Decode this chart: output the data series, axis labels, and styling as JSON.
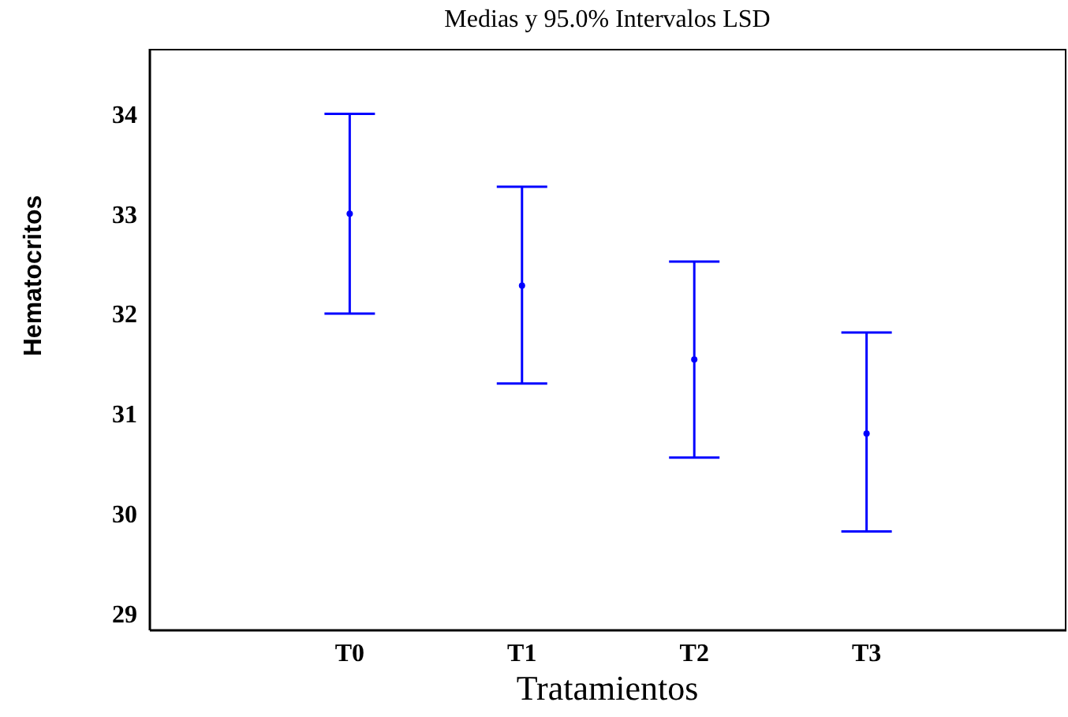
{
  "chart_data": {
    "type": "scatter",
    "title": "Medias y 95.0% Intervalos LSD",
    "xlabel": "Tratamientos",
    "ylabel": "Hematocritos",
    "categories": [
      "T0",
      "T1",
      "T2",
      "T3"
    ],
    "series": [
      {
        "color": "#0000ff",
        "values": [
          33.0,
          32.28,
          31.54,
          30.8
        ],
        "errors": [
          [
            32.0,
            34.0
          ],
          [
            31.3,
            33.27
          ],
          [
            30.56,
            32.52
          ],
          [
            29.82,
            31.81
          ]
        ]
      }
    ],
    "ylim": [
      28.83,
      34.65
    ],
    "yticks": [
      29,
      30,
      31,
      32,
      33,
      34
    ],
    "marker": "circle",
    "grid": false
  }
}
